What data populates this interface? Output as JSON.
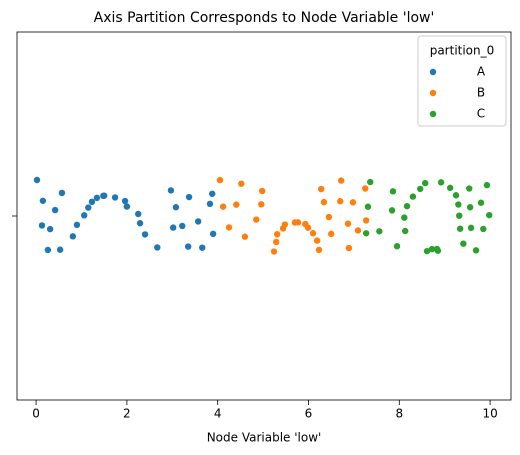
{
  "chart_data": {
    "type": "strip",
    "title": "Axis Partition Corresponds to Node Variable 'low'",
    "x_label": "Node Variable 'low'",
    "legend_title": "partition_0",
    "legend": "upper right",
    "xlim": [
      -0.42,
      10.46
    ],
    "xticks": [
      0,
      2,
      4,
      6,
      8,
      10
    ],
    "series": [
      {
        "name": "A",
        "color": "#1f77b4",
        "x": [
          0.02,
          0.13,
          0.15,
          0.26,
          0.31,
          0.42,
          0.57,
          0.53,
          0.81,
          0.9,
          1.06,
          1.15,
          1.23,
          1.34,
          1.48,
          1.5,
          1.74,
          1.96,
          2.0,
          2.25,
          2.29,
          2.4,
          2.67,
          2.97,
          3.08,
          3.22,
          3.35,
          3.37,
          3.57,
          3.66,
          3.83,
          3.9,
          3.88,
          3.02
        ]
      },
      {
        "name": "B",
        "color": "#ff7f0e",
        "x": [
          4.12,
          4.05,
          4.25,
          4.41,
          4.52,
          4.6,
          4.85,
          4.96,
          4.98,
          5.24,
          5.29,
          5.31,
          5.44,
          5.48,
          5.7,
          5.77,
          5.93,
          5.99,
          6.1,
          6.19,
          6.23,
          6.28,
          6.34,
          6.45,
          6.5,
          6.72,
          6.7,
          6.87,
          6.89,
          6.98,
          7.09,
          7.25,
          7.27
        ]
      },
      {
        "name": "C",
        "color": "#2ca02c",
        "x": [
          7.27,
          7.31,
          7.36,
          7.56,
          7.84,
          7.86,
          7.95,
          8.13,
          8.11,
          8.17,
          8.3,
          8.46,
          8.57,
          8.61,
          8.72,
          8.83,
          8.85,
          8.92,
          9.12,
          9.25,
          9.3,
          9.32,
          9.34,
          9.41,
          9.54,
          9.56,
          9.58,
          9.69,
          9.8,
          9.85,
          9.93,
          9.98
        ]
      }
    ]
  }
}
